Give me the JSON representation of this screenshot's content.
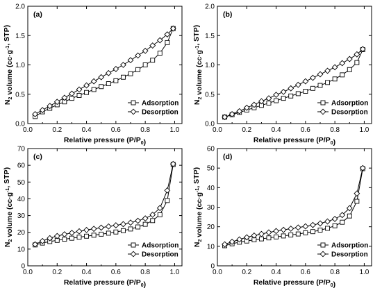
{
  "chart_data": [
    {
      "type": "line",
      "panel_label": "(a)",
      "xlabel": "Relative pressure (P/P0)",
      "ylabel": "N2 volume (cc·g-1, STP)",
      "xlim": [
        0.0,
        1.05
      ],
      "ylim": [
        0.0,
        2.0
      ],
      "xticks": [
        "0.0",
        "0.2",
        "0.4",
        "0.6",
        "0.8",
        "1.0"
      ],
      "yticks": [
        "0.0",
        "0.5",
        "1.0",
        "1.5",
        "2.0"
      ],
      "legend_position": "bottom-right",
      "series": [
        {
          "name": "Adsorption",
          "marker": "square",
          "x": [
            0.05,
            0.1,
            0.15,
            0.2,
            0.25,
            0.3,
            0.35,
            0.4,
            0.45,
            0.5,
            0.55,
            0.6,
            0.65,
            0.7,
            0.75,
            0.8,
            0.85,
            0.9,
            0.95,
            0.99
          ],
          "y": [
            0.12,
            0.2,
            0.26,
            0.32,
            0.37,
            0.43,
            0.48,
            0.53,
            0.58,
            0.63,
            0.68,
            0.73,
            0.79,
            0.85,
            0.92,
            1.0,
            1.08,
            1.2,
            1.38,
            1.62
          ]
        },
        {
          "name": "Desorption",
          "marker": "diamond",
          "x": [
            0.99,
            0.95,
            0.9,
            0.85,
            0.8,
            0.75,
            0.7,
            0.65,
            0.6,
            0.55,
            0.5,
            0.45,
            0.4,
            0.35,
            0.3,
            0.25,
            0.2,
            0.15,
            0.1,
            0.05
          ],
          "y": [
            1.62,
            1.52,
            1.42,
            1.33,
            1.24,
            1.16,
            1.08,
            1.0,
            0.93,
            0.86,
            0.79,
            0.72,
            0.65,
            0.58,
            0.51,
            0.44,
            0.37,
            0.3,
            0.23,
            0.16
          ]
        }
      ]
    },
    {
      "type": "line",
      "panel_label": "(b)",
      "xlabel": "Relative pressure (P/P0)",
      "ylabel": "N2 volume (cc·g-1, STP)",
      "xlim": [
        0.0,
        1.05
      ],
      "ylim": [
        0.0,
        2.0
      ],
      "xticks": [
        "0.0",
        "0.2",
        "0.4",
        "0.6",
        "0.8",
        "1.0"
      ],
      "yticks": [
        "0.0",
        "0.5",
        "1.0",
        "1.5",
        "2.0"
      ],
      "legend_position": "bottom-right",
      "series": [
        {
          "name": "Adsorption",
          "marker": "square",
          "x": [
            0.05,
            0.1,
            0.15,
            0.2,
            0.25,
            0.3,
            0.35,
            0.4,
            0.45,
            0.5,
            0.55,
            0.6,
            0.65,
            0.7,
            0.75,
            0.8,
            0.85,
            0.9,
            0.95,
            0.99
          ],
          "y": [
            0.11,
            0.15,
            0.19,
            0.23,
            0.27,
            0.31,
            0.35,
            0.39,
            0.43,
            0.47,
            0.51,
            0.55,
            0.6,
            0.65,
            0.7,
            0.76,
            0.83,
            0.92,
            1.04,
            1.26
          ]
        },
        {
          "name": "Desorption",
          "marker": "diamond",
          "x": [
            0.99,
            0.95,
            0.9,
            0.85,
            0.8,
            0.75,
            0.7,
            0.65,
            0.6,
            0.55,
            0.5,
            0.45,
            0.4,
            0.35,
            0.3,
            0.25,
            0.2,
            0.15,
            0.1,
            0.05
          ],
          "y": [
            1.27,
            1.18,
            1.1,
            1.03,
            0.96,
            0.9,
            0.84,
            0.78,
            0.72,
            0.66,
            0.6,
            0.54,
            0.49,
            0.43,
            0.38,
            0.32,
            0.27,
            0.21,
            0.16,
            0.11
          ]
        }
      ]
    },
    {
      "type": "line",
      "panel_label": "(c)",
      "xlabel": "Relative pressure (P/P0)",
      "ylabel": "N2 volume (cc·g-1, STP)",
      "xlim": [
        0.0,
        1.05
      ],
      "ylim": [
        0,
        70
      ],
      "xticks": [
        "0.0",
        "0.2",
        "0.4",
        "0.6",
        "0.8",
        "1.0"
      ],
      "yticks": [
        "0",
        "10",
        "20",
        "30",
        "40",
        "50",
        "60",
        "70"
      ],
      "legend_position": "bottom-right",
      "series": [
        {
          "name": "Adsorption",
          "marker": "square",
          "x": [
            0.05,
            0.1,
            0.15,
            0.2,
            0.25,
            0.3,
            0.35,
            0.4,
            0.45,
            0.5,
            0.55,
            0.6,
            0.65,
            0.7,
            0.75,
            0.8,
            0.85,
            0.9,
            0.95,
            0.99
          ],
          "y": [
            12.5,
            13.6,
            14.5,
            15.2,
            15.9,
            16.5,
            17.1,
            17.7,
            18.3,
            18.9,
            19.5,
            20.2,
            21.0,
            22.0,
            23.2,
            24.8,
            27.0,
            30.5,
            39.0,
            60.5
          ]
        },
        {
          "name": "Desorption",
          "marker": "diamond",
          "x": [
            0.99,
            0.95,
            0.9,
            0.85,
            0.8,
            0.75,
            0.7,
            0.65,
            0.6,
            0.55,
            0.5,
            0.45,
            0.4,
            0.35,
            0.3,
            0.25,
            0.2,
            0.15,
            0.1,
            0.05
          ],
          "y": [
            60.8,
            45.0,
            34.5,
            30.5,
            28.3,
            26.9,
            25.8,
            24.9,
            24.2,
            23.5,
            22.8,
            22.1,
            21.4,
            20.6,
            19.7,
            18.8,
            17.8,
            16.5,
            14.8,
            12.8
          ]
        }
      ]
    },
    {
      "type": "line",
      "panel_label": "(d)",
      "xlabel": "Relative pressure (P/P0)",
      "ylabel": "N2 volume (cc·g-1, STP)",
      "xlim": [
        0.0,
        1.05
      ],
      "ylim": [
        0,
        60
      ],
      "xticks": [
        "0.0",
        "0.2",
        "0.4",
        "0.6",
        "0.8",
        "1.0"
      ],
      "yticks": [
        "0",
        "10",
        "20",
        "30",
        "40",
        "50",
        "60"
      ],
      "legend_position": "bottom-right",
      "series": [
        {
          "name": "Adsorption",
          "marker": "square",
          "x": [
            0.05,
            0.1,
            0.15,
            0.2,
            0.25,
            0.3,
            0.35,
            0.4,
            0.45,
            0.5,
            0.55,
            0.6,
            0.65,
            0.7,
            0.75,
            0.8,
            0.85,
            0.9,
            0.95,
            0.99
          ],
          "y": [
            10.3,
            11.3,
            12.1,
            12.7,
            13.3,
            13.8,
            14.3,
            14.8,
            15.3,
            15.8,
            16.3,
            16.9,
            17.5,
            18.3,
            19.2,
            20.5,
            22.3,
            25.5,
            33.0,
            49.7
          ]
        },
        {
          "name": "Desorption",
          "marker": "diamond",
          "x": [
            0.99,
            0.95,
            0.9,
            0.85,
            0.8,
            0.75,
            0.7,
            0.65,
            0.6,
            0.55,
            0.5,
            0.45,
            0.4,
            0.35,
            0.3,
            0.25,
            0.2,
            0.15,
            0.1,
            0.05
          ],
          "y": [
            50.0,
            37.0,
            29.5,
            26.0,
            24.0,
            22.7,
            21.7,
            20.9,
            20.2,
            19.6,
            19.0,
            18.4,
            17.8,
            17.1,
            16.3,
            15.5,
            14.6,
            13.5,
            12.3,
            11.0
          ]
        }
      ]
    }
  ]
}
